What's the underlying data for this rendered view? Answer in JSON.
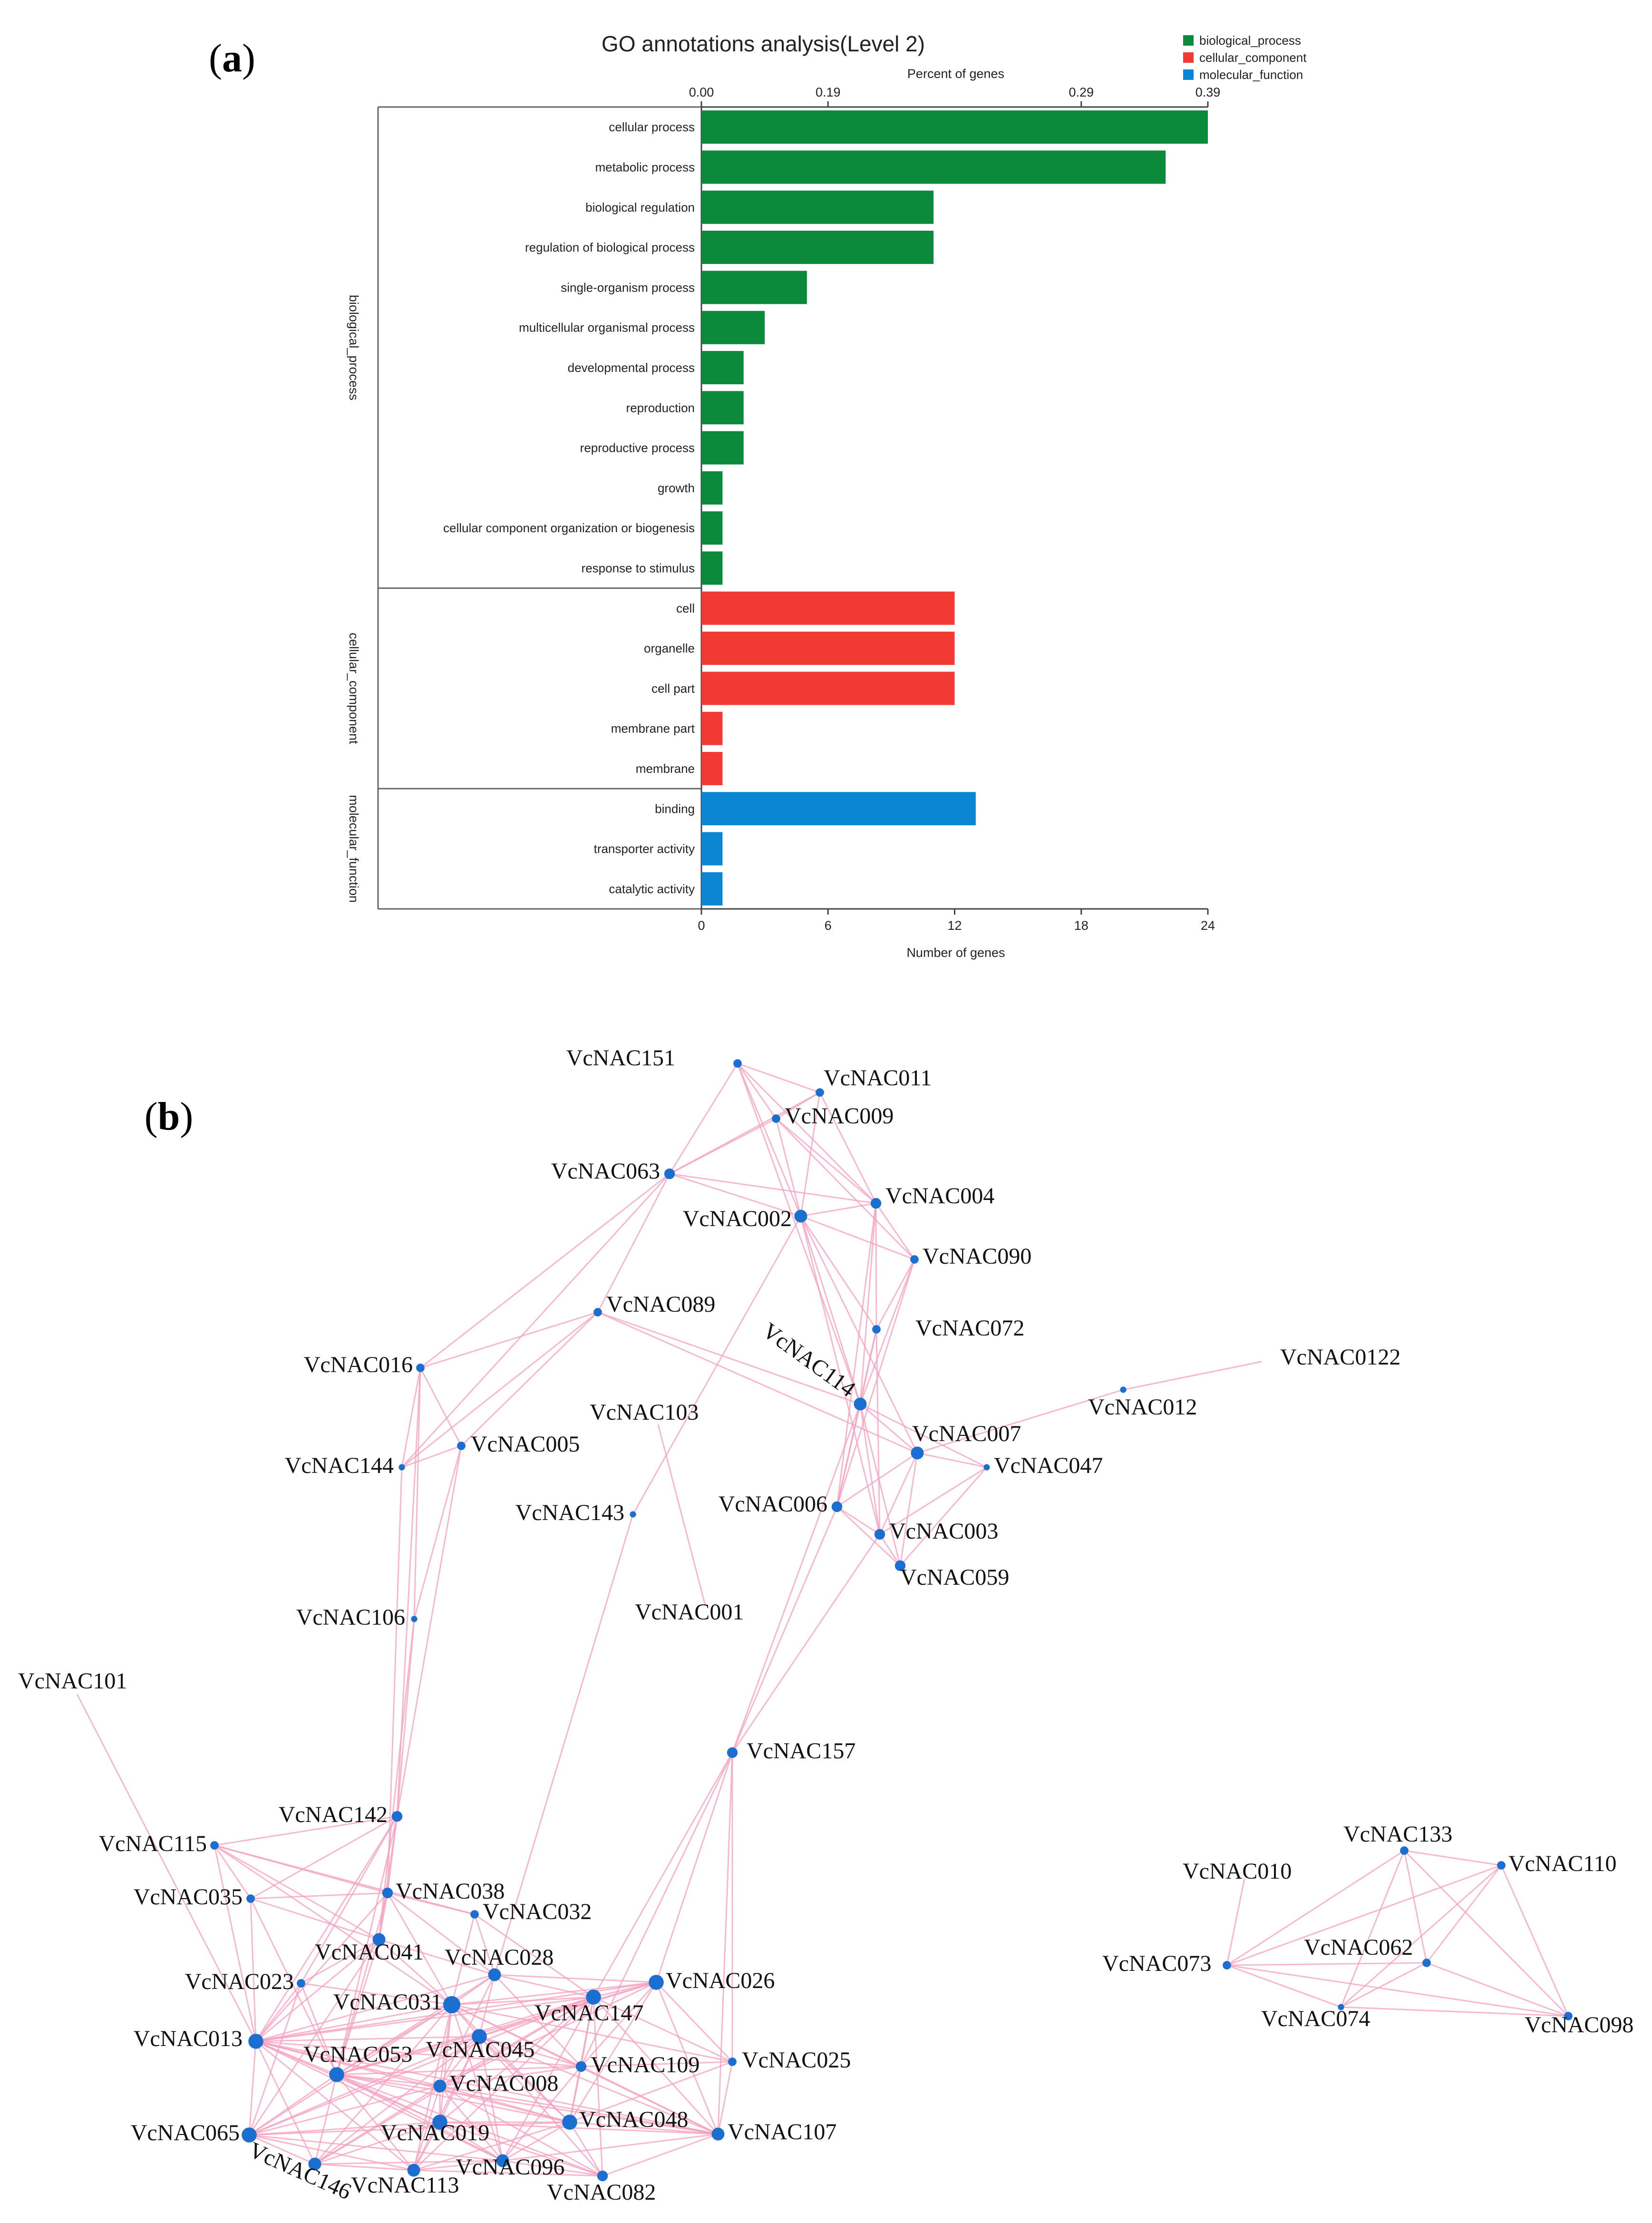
{
  "panel_a": {
    "label_open": "(",
    "label_letter": "a",
    "label_close": ")",
    "title": "GO annotations analysis(Level 2)",
    "top_axis_title": "Percent of genes",
    "bottom_axis_title": "Number of genes",
    "top_ticks": [
      "0.00",
      "0.19",
      "0.29",
      "0.39"
    ],
    "bottom_ticks": [
      "0",
      "6",
      "12",
      "18",
      "24"
    ],
    "legend": [
      {
        "name": "biological_process",
        "color": "#0b8a3c"
      },
      {
        "name": "cellular_component",
        "color": "#f23a35"
      },
      {
        "name": "molecular_function",
        "color": "#0a86d2"
      }
    ]
  },
  "chart_data": {
    "type": "bar",
    "orientation": "horizontal",
    "title": "GO annotations analysis(Level 2)",
    "xlabel": "Number of genes",
    "x2label": "Percent of genes",
    "xlim": [
      0,
      24
    ],
    "groups": [
      {
        "name": "biological_process",
        "color": "#0b8a3c",
        "categories": [
          "cellular process",
          "metabolic process",
          "biological regulation",
          "regulation of biological process",
          "single-organism process",
          "multicellular organismal process",
          "developmental process",
          "reproduction",
          "reproductive process",
          "growth",
          "cellular component organization or biogenesis",
          "response to stimulus"
        ],
        "values": [
          24,
          22,
          11,
          11,
          5,
          3,
          2,
          2,
          2,
          1,
          1,
          1
        ]
      },
      {
        "name": "cellular_component",
        "color": "#f23a35",
        "categories": [
          "cell",
          "organelle",
          "cell part",
          "membrane part",
          "membrane"
        ],
        "values": [
          12,
          12,
          12,
          1,
          1
        ]
      },
      {
        "name": "molecular_function",
        "color": "#0a86d2",
        "categories": [
          "binding",
          "transporter activity",
          "catalytic activity"
        ],
        "values": [
          13,
          1,
          1
        ]
      }
    ]
  },
  "panel_b": {
    "label_open": "(",
    "label_letter": "b",
    "label_close": ")",
    "edge_color": "#f4a0bd",
    "node_color": "#1a6fd0",
    "nodes": [
      {
        "id": "VcNAC151",
        "r": 3
      },
      {
        "id": "VcNAC011",
        "r": 3
      },
      {
        "id": "VcNAC009",
        "r": 3
      },
      {
        "id": "VcNAC063",
        "r": 4
      },
      {
        "id": "VcNAC002",
        "r": 5
      },
      {
        "id": "VcNAC004",
        "r": 4
      },
      {
        "id": "VcNAC090",
        "r": 3
      },
      {
        "id": "VcNAC089",
        "r": 3
      },
      {
        "id": "VcNAC072",
        "r": 3
      },
      {
        "id": "VcNAC114",
        "r": 5
      },
      {
        "id": "VcNAC0122",
        "r": 0
      },
      {
        "id": "VcNAC012",
        "r": 2
      },
      {
        "id": "VcNAC016",
        "r": 3
      },
      {
        "id": "VcNAC005",
        "r": 3
      },
      {
        "id": "VcNAC144",
        "r": 2
      },
      {
        "id": "VcNAC103",
        "r": 0
      },
      {
        "id": "VcNAC143",
        "r": 2
      },
      {
        "id": "VcNAC007",
        "r": 5
      },
      {
        "id": "VcNAC047",
        "r": 2
      },
      {
        "id": "VcNAC006",
        "r": 4
      },
      {
        "id": "VcNAC003",
        "r": 4
      },
      {
        "id": "VcNAC059",
        "r": 4
      },
      {
        "id": "VcNAC001",
        "r": 0
      },
      {
        "id": "VcNAC106",
        "r": 2
      },
      {
        "id": "VcNAC101",
        "r": 0
      },
      {
        "id": "VcNAC157",
        "r": 4
      },
      {
        "id": "VcNAC142",
        "r": 4
      },
      {
        "id": "VcNAC115",
        "r": 3
      },
      {
        "id": "VcNAC038",
        "r": 4
      },
      {
        "id": "VcNAC035",
        "r": 3
      },
      {
        "id": "VcNAC032",
        "r": 3
      },
      {
        "id": "VcNAC041",
        "r": 5
      },
      {
        "id": "VcNAC028",
        "r": 5
      },
      {
        "id": "VcNAC026",
        "r": 6
      },
      {
        "id": "VcNAC023",
        "r": 3
      },
      {
        "id": "VcNAC031",
        "r": 7
      },
      {
        "id": "VcNAC147",
        "r": 6
      },
      {
        "id": "VcNAC013",
        "r": 6
      },
      {
        "id": "VcNAC053",
        "r": 6
      },
      {
        "id": "VcNAC045",
        "r": 6
      },
      {
        "id": "VcNAC109",
        "r": 4
      },
      {
        "id": "VcNAC025",
        "r": 3
      },
      {
        "id": "VcNAC008",
        "r": 5
      },
      {
        "id": "VcNAC048",
        "r": 6
      },
      {
        "id": "VcNAC065",
        "r": 6
      },
      {
        "id": "VcNAC019",
        "r": 6
      },
      {
        "id": "VcNAC107",
        "r": 5
      },
      {
        "id": "VcNAC146",
        "r": 5
      },
      {
        "id": "VcNAC096",
        "r": 5
      },
      {
        "id": "VcNAC113",
        "r": 5
      },
      {
        "id": "VcNAC082",
        "r": 4
      },
      {
        "id": "VcNAC133",
        "r": 3
      },
      {
        "id": "VcNAC110",
        "r": 3
      },
      {
        "id": "VcNAC010",
        "r": 0
      },
      {
        "id": "VcNAC062",
        "r": 3
      },
      {
        "id": "VcNAC073",
        "r": 3
      },
      {
        "id": "VcNAC074",
        "r": 2
      },
      {
        "id": "VcNAC098",
        "r": 3
      }
    ],
    "edges": [
      [
        "VcNAC151",
        "VcNAC011"
      ],
      [
        "VcNAC151",
        "VcNAC009"
      ],
      [
        "VcNAC151",
        "VcNAC063"
      ],
      [
        "VcNAC151",
        "VcNAC002"
      ],
      [
        "VcNAC151",
        "VcNAC004"
      ],
      [
        "VcNAC151",
        "VcNAC114"
      ],
      [
        "VcNAC011",
        "VcNAC009"
      ],
      [
        "VcNAC011",
        "VcNAC063"
      ],
      [
        "VcNAC011",
        "VcNAC002"
      ],
      [
        "VcNAC011",
        "VcNAC004"
      ],
      [
        "VcNAC009",
        "VcNAC063"
      ],
      [
        "VcNAC009",
        "VcNAC002"
      ],
      [
        "VcNAC009",
        "VcNAC004"
      ],
      [
        "VcNAC009",
        "VcNAC090"
      ],
      [
        "VcNAC063",
        "VcNAC002"
      ],
      [
        "VcNAC063",
        "VcNAC004"
      ],
      [
        "VcNAC063",
        "VcNAC016"
      ],
      [
        "VcNAC063",
        "VcNAC144"
      ],
      [
        "VcNAC063",
        "VcNAC089"
      ],
      [
        "VcNAC002",
        "VcNAC004"
      ],
      [
        "VcNAC002",
        "VcNAC090"
      ],
      [
        "VcNAC002",
        "VcNAC072"
      ],
      [
        "VcNAC002",
        "VcNAC114"
      ],
      [
        "VcNAC002",
        "VcNAC007"
      ],
      [
        "VcNAC002",
        "VcNAC003"
      ],
      [
        "VcNAC002",
        "VcNAC143"
      ],
      [
        "VcNAC004",
        "VcNAC090"
      ],
      [
        "VcNAC004",
        "VcNAC072"
      ],
      [
        "VcNAC004",
        "VcNAC114"
      ],
      [
        "VcNAC004",
        "VcNAC006"
      ],
      [
        "VcNAC090",
        "VcNAC072"
      ],
      [
        "VcNAC090",
        "VcNAC114"
      ],
      [
        "VcNAC090",
        "VcNAC006"
      ],
      [
        "VcNAC072",
        "VcNAC114"
      ],
      [
        "VcNAC072",
        "VcNAC003"
      ],
      [
        "VcNAC072",
        "VcNAC006"
      ],
      [
        "VcNAC089",
        "VcNAC016"
      ],
      [
        "VcNAC089",
        "VcNAC144"
      ],
      [
        "VcNAC089",
        "VcNAC005"
      ],
      [
        "VcNAC089",
        "VcNAC114"
      ],
      [
        "VcNAC089",
        "VcNAC007"
      ],
      [
        "VcNAC114",
        "VcNAC007"
      ],
      [
        "VcNAC114",
        "VcNAC047"
      ],
      [
        "VcNAC114",
        "VcNAC006"
      ],
      [
        "VcNAC114",
        "VcNAC003"
      ],
      [
        "VcNAC114",
        "VcNAC059"
      ],
      [
        "VcNAC114",
        "VcNAC157"
      ],
      [
        "VcNAC012",
        "VcNAC0122"
      ],
      [
        "VcNAC012",
        "VcNAC007"
      ],
      [
        "VcNAC007",
        "VcNAC047"
      ],
      [
        "VcNAC007",
        "VcNAC006"
      ],
      [
        "VcNAC007",
        "VcNAC003"
      ],
      [
        "VcNAC007",
        "VcNAC059"
      ],
      [
        "VcNAC047",
        "VcNAC003"
      ],
      [
        "VcNAC047",
        "VcNAC059"
      ],
      [
        "VcNAC006",
        "VcNAC003"
      ],
      [
        "VcNAC006",
        "VcNAC059"
      ],
      [
        "VcNAC006",
        "VcNAC157"
      ],
      [
        "VcNAC003",
        "VcNAC059"
      ],
      [
        "VcNAC003",
        "VcNAC157"
      ],
      [
        "VcNAC103",
        "VcNAC001"
      ],
      [
        "VcNAC016",
        "VcNAC144"
      ],
      [
        "VcNAC016",
        "VcNAC005"
      ],
      [
        "VcNAC016",
        "VcNAC106"
      ],
      [
        "VcNAC016",
        "VcNAC142"
      ],
      [
        "VcNAC144",
        "VcNAC005"
      ],
      [
        "VcNAC144",
        "VcNAC038"
      ],
      [
        "VcNAC005",
        "VcNAC106"
      ],
      [
        "VcNAC005",
        "VcNAC142"
      ],
      [
        "VcNAC106",
        "VcNAC142"
      ],
      [
        "VcNAC106",
        "VcNAC041"
      ],
      [
        "VcNAC143",
        "VcNAC028"
      ],
      [
        "VcNAC101",
        "VcNAC013"
      ],
      [
        "VcNAC157",
        "VcNAC026"
      ],
      [
        "VcNAC157",
        "VcNAC147"
      ],
      [
        "VcNAC157",
        "VcNAC025"
      ],
      [
        "VcNAC157",
        "VcNAC107"
      ],
      [
        "VcNAC157",
        "VcNAC109"
      ],
      [
        "VcNAC142",
        "VcNAC038"
      ],
      [
        "VcNAC142",
        "VcNAC041"
      ],
      [
        "VcNAC142",
        "VcNAC013"
      ],
      [
        "VcNAC142",
        "VcNAC023"
      ],
      [
        "VcNAC142",
        "VcNAC115"
      ],
      [
        "VcNAC142",
        "VcNAC035"
      ],
      [
        "VcNAC142",
        "VcNAC053"
      ],
      [
        "VcNAC115",
        "VcNAC035"
      ],
      [
        "VcNAC115",
        "VcNAC038"
      ],
      [
        "VcNAC115",
        "VcNAC013"
      ],
      [
        "VcNAC115",
        "VcNAC041"
      ],
      [
        "VcNAC115",
        "VcNAC032"
      ],
      [
        "VcNAC115",
        "VcNAC031"
      ],
      [
        "VcNAC035",
        "VcNAC038"
      ],
      [
        "VcNAC035",
        "VcNAC013"
      ],
      [
        "VcNAC035",
        "VcNAC041"
      ],
      [
        "VcNAC035",
        "VcNAC053"
      ],
      [
        "VcNAC038",
        "VcNAC041"
      ],
      [
        "VcNAC038",
        "VcNAC032"
      ],
      [
        "VcNAC038",
        "VcNAC013"
      ],
      [
        "VcNAC038",
        "VcNAC031"
      ],
      [
        "VcNAC038",
        "VcNAC053"
      ],
      [
        "VcNAC038",
        "VcNAC028"
      ],
      [
        "VcNAC032",
        "VcNAC028"
      ],
      [
        "VcNAC032",
        "VcNAC031"
      ],
      [
        "VcNAC032",
        "VcNAC147"
      ],
      [
        "VcNAC041",
        "VcNAC028"
      ],
      [
        "VcNAC041",
        "VcNAC031"
      ],
      [
        "VcNAC041",
        "VcNAC013"
      ],
      [
        "VcNAC041",
        "VcNAC053"
      ],
      [
        "VcNAC041",
        "VcNAC023"
      ],
      [
        "VcNAC041",
        "VcNAC065"
      ],
      [
        "VcNAC028",
        "VcNAC026"
      ],
      [
        "VcNAC028",
        "VcNAC031"
      ],
      [
        "VcNAC028",
        "VcNAC147"
      ],
      [
        "VcNAC028",
        "VcNAC045"
      ],
      [
        "VcNAC028",
        "VcNAC053"
      ],
      [
        "VcNAC028",
        "VcNAC013"
      ],
      [
        "VcNAC028",
        "VcNAC109"
      ],
      [
        "VcNAC028",
        "VcNAC008"
      ],
      [
        "VcNAC026",
        "VcNAC147"
      ],
      [
        "VcNAC026",
        "VcNAC031"
      ],
      [
        "VcNAC026",
        "VcNAC045"
      ],
      [
        "VcNAC026",
        "VcNAC109"
      ],
      [
        "VcNAC026",
        "VcNAC025"
      ],
      [
        "VcNAC026",
        "VcNAC048"
      ],
      [
        "VcNAC026",
        "VcNAC107"
      ],
      [
        "VcNAC026",
        "VcNAC013"
      ],
      [
        "VcNAC026",
        "VcNAC053"
      ],
      [
        "VcNAC026",
        "VcNAC008"
      ],
      [
        "VcNAC023",
        "VcNAC013"
      ],
      [
        "VcNAC023",
        "VcNAC053"
      ],
      [
        "VcNAC023",
        "VcNAC031"
      ],
      [
        "VcNAC023",
        "VcNAC065"
      ],
      [
        "VcNAC031",
        "VcNAC147"
      ],
      [
        "VcNAC031",
        "VcNAC013"
      ],
      [
        "VcNAC031",
        "VcNAC053"
      ],
      [
        "VcNAC031",
        "VcNAC045"
      ],
      [
        "VcNAC031",
        "VcNAC008"
      ],
      [
        "VcNAC031",
        "VcNAC109"
      ],
      [
        "VcNAC031",
        "VcNAC048"
      ],
      [
        "VcNAC031",
        "VcNAC065"
      ],
      [
        "VcNAC031",
        "VcNAC019"
      ],
      [
        "VcNAC031",
        "VcNAC096"
      ],
      [
        "VcNAC031",
        "VcNAC113"
      ],
      [
        "VcNAC031",
        "VcNAC146"
      ],
      [
        "VcNAC031",
        "VcNAC107"
      ],
      [
        "VcNAC031",
        "VcNAC025"
      ],
      [
        "VcNAC147",
        "VcNAC013"
      ],
      [
        "VcNAC147",
        "VcNAC053"
      ],
      [
        "VcNAC147",
        "VcNAC045"
      ],
      [
        "VcNAC147",
        "VcNAC109"
      ],
      [
        "VcNAC147",
        "VcNAC008"
      ],
      [
        "VcNAC147",
        "VcNAC048"
      ],
      [
        "VcNAC147",
        "VcNAC025"
      ],
      [
        "VcNAC147",
        "VcNAC107"
      ],
      [
        "VcNAC147",
        "VcNAC019"
      ],
      [
        "VcNAC147",
        "VcNAC096"
      ],
      [
        "VcNAC147",
        "VcNAC065"
      ],
      [
        "VcNAC147",
        "VcNAC113"
      ],
      [
        "VcNAC147",
        "VcNAC082"
      ],
      [
        "VcNAC147",
        "VcNAC146"
      ],
      [
        "VcNAC013",
        "VcNAC053"
      ],
      [
        "VcNAC013",
        "VcNAC045"
      ],
      [
        "VcNAC013",
        "VcNAC008"
      ],
      [
        "VcNAC013",
        "VcNAC065"
      ],
      [
        "VcNAC013",
        "VcNAC019"
      ],
      [
        "VcNAC013",
        "VcNAC146"
      ],
      [
        "VcNAC013",
        "VcNAC113"
      ],
      [
        "VcNAC013",
        "VcNAC096"
      ],
      [
        "VcNAC013",
        "VcNAC048"
      ],
      [
        "VcNAC013",
        "VcNAC109"
      ],
      [
        "VcNAC013",
        "VcNAC107"
      ],
      [
        "VcNAC053",
        "VcNAC045"
      ],
      [
        "VcNAC053",
        "VcNAC008"
      ],
      [
        "VcNAC053",
        "VcNAC065"
      ],
      [
        "VcNAC053",
        "VcNAC019"
      ],
      [
        "VcNAC053",
        "VcNAC146"
      ],
      [
        "VcNAC053",
        "VcNAC113"
      ],
      [
        "VcNAC053",
        "VcNAC096"
      ],
      [
        "VcNAC053",
        "VcNAC048"
      ],
      [
        "VcNAC053",
        "VcNAC109"
      ],
      [
        "VcNAC053",
        "VcNAC082"
      ],
      [
        "VcNAC053",
        "VcNAC107"
      ],
      [
        "VcNAC045",
        "VcNAC008"
      ],
      [
        "VcNAC045",
        "VcNAC109"
      ],
      [
        "VcNAC045",
        "VcNAC048"
      ],
      [
        "VcNAC045",
        "VcNAC019"
      ],
      [
        "VcNAC045",
        "VcNAC096"
      ],
      [
        "VcNAC045",
        "VcNAC065"
      ],
      [
        "VcNAC045",
        "VcNAC113"
      ],
      [
        "VcNAC045",
        "VcNAC146"
      ],
      [
        "VcNAC045",
        "VcNAC107"
      ],
      [
        "VcNAC045",
        "VcNAC082"
      ],
      [
        "VcNAC109",
        "VcNAC008"
      ],
      [
        "VcNAC109",
        "VcNAC048"
      ],
      [
        "VcNAC109",
        "VcNAC025"
      ],
      [
        "VcNAC109",
        "VcNAC107"
      ],
      [
        "VcNAC109",
        "VcNAC096"
      ],
      [
        "VcNAC025",
        "VcNAC048"
      ],
      [
        "VcNAC025",
        "VcNAC107"
      ],
      [
        "VcNAC008",
        "VcNAC048"
      ],
      [
        "VcNAC008",
        "VcNAC019"
      ],
      [
        "VcNAC008",
        "VcNAC096"
      ],
      [
        "VcNAC008",
        "VcNAC065"
      ],
      [
        "VcNAC008",
        "VcNAC113"
      ],
      [
        "VcNAC008",
        "VcNAC146"
      ],
      [
        "VcNAC008",
        "VcNAC082"
      ],
      [
        "VcNAC008",
        "VcNAC107"
      ],
      [
        "VcNAC048",
        "VcNAC107"
      ],
      [
        "VcNAC048",
        "VcNAC019"
      ],
      [
        "VcNAC048",
        "VcNAC096"
      ],
      [
        "VcNAC048",
        "VcNAC082"
      ],
      [
        "VcNAC048",
        "VcNAC113"
      ],
      [
        "VcNAC048",
        "VcNAC065"
      ],
      [
        "VcNAC065",
        "VcNAC146"
      ],
      [
        "VcNAC065",
        "VcNAC019"
      ],
      [
        "VcNAC065",
        "VcNAC113"
      ],
      [
        "VcNAC065",
        "VcNAC096"
      ],
      [
        "VcNAC019",
        "VcNAC146"
      ],
      [
        "VcNAC019",
        "VcNAC113"
      ],
      [
        "VcNAC019",
        "VcNAC096"
      ],
      [
        "VcNAC019",
        "VcNAC082"
      ],
      [
        "VcNAC019",
        "VcNAC107"
      ],
      [
        "VcNAC146",
        "VcNAC113"
      ],
      [
        "VcNAC146",
        "VcNAC096"
      ],
      [
        "VcNAC113",
        "VcNAC096"
      ],
      [
        "VcNAC113",
        "VcNAC082"
      ],
      [
        "VcNAC096",
        "VcNAC082"
      ],
      [
        "VcNAC096",
        "VcNAC107"
      ],
      [
        "VcNAC082",
        "VcNAC107"
      ],
      [
        "VcNAC073",
        "VcNAC010"
      ],
      [
        "VcNAC073",
        "VcNAC133"
      ],
      [
        "VcNAC073",
        "VcNAC110"
      ],
      [
        "VcNAC073",
        "VcNAC062"
      ],
      [
        "VcNAC073",
        "VcNAC074"
      ],
      [
        "VcNAC073",
        "VcNAC098"
      ],
      [
        "VcNAC133",
        "VcNAC110"
      ],
      [
        "VcNAC133",
        "VcNAC062"
      ],
      [
        "VcNAC133",
        "VcNAC098"
      ],
      [
        "VcNAC133",
        "VcNAC074"
      ],
      [
        "VcNAC110",
        "VcNAC062"
      ],
      [
        "VcNAC110",
        "VcNAC074"
      ],
      [
        "VcNAC110",
        "VcNAC098"
      ],
      [
        "VcNAC062",
        "VcNAC074"
      ],
      [
        "VcNAC062",
        "VcNAC098"
      ],
      [
        "VcNAC074",
        "VcNAC098"
      ]
    ]
  }
}
